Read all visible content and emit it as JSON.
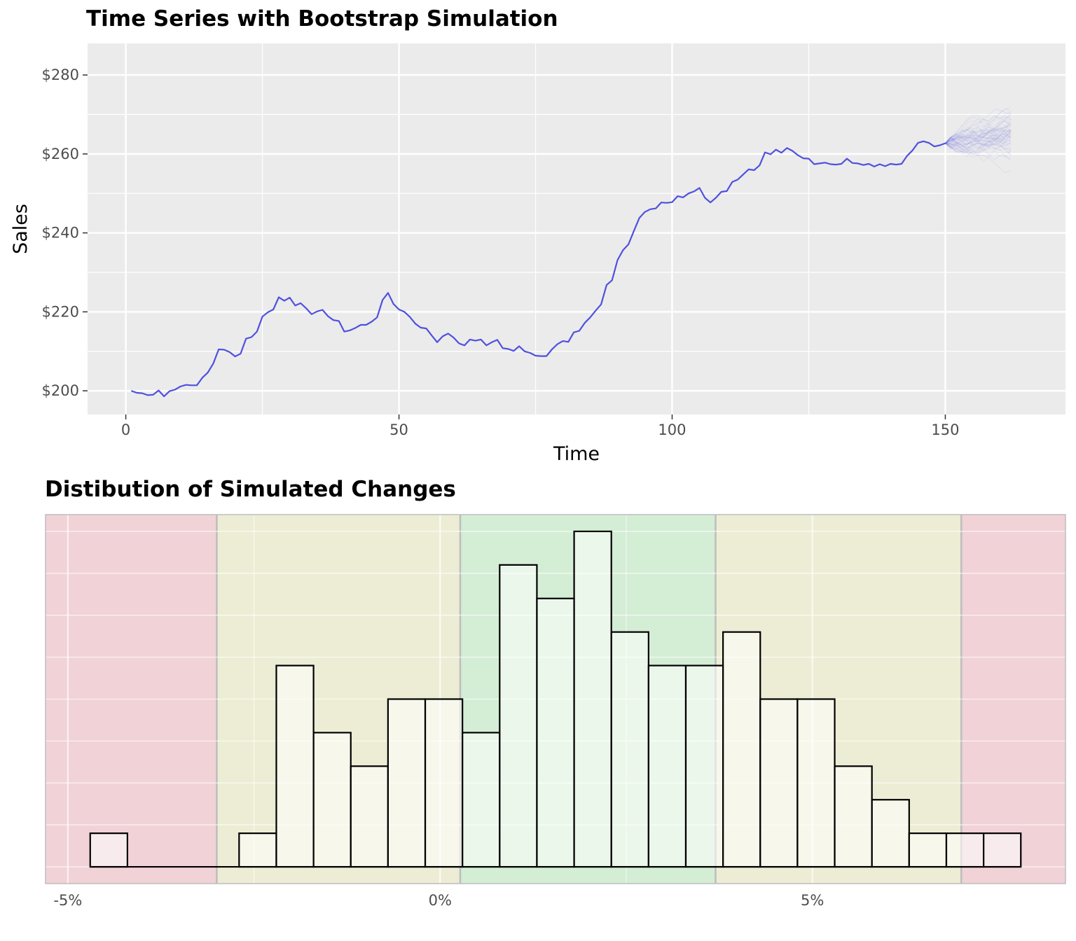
{
  "chart_data": [
    {
      "type": "line",
      "title": "Time Series with Bootstrap Simulation",
      "xlabel": "Time",
      "ylabel": "Sales",
      "xlim": [
        -7,
        172
      ],
      "ylim": [
        194,
        288
      ],
      "x_ticks": [
        0,
        50,
        100,
        150
      ],
      "x_tick_labels": [
        "0",
        "50",
        "100",
        "150"
      ],
      "y_ticks": [
        200,
        220,
        240,
        260,
        280
      ],
      "y_tick_labels": [
        "$200",
        "$220",
        "$240",
        "$260",
        "$280"
      ],
      "grid": true,
      "colors": {
        "line": "#5050e0",
        "panel": "#ebebeb",
        "grid": "#ffffff"
      },
      "series": [
        {
          "x": [
            1,
            2,
            3,
            4,
            5,
            6,
            7,
            8,
            9,
            10,
            11,
            12,
            13,
            14,
            15,
            16,
            17,
            18,
            19,
            20,
            21,
            22,
            23,
            24,
            25,
            26,
            27,
            28,
            29,
            30,
            31,
            32,
            33,
            34,
            35,
            36,
            37,
            38,
            39,
            40,
            41,
            42,
            43,
            44,
            45,
            46,
            47,
            48,
            49,
            50,
            51,
            52,
            53,
            54,
            55,
            56,
            57,
            58,
            59,
            60,
            61,
            62,
            63,
            64,
            65,
            66,
            67,
            68,
            69,
            70,
            71,
            72,
            73,
            74,
            75,
            76,
            77,
            78,
            79,
            80,
            81,
            82,
            83,
            84,
            85,
            86,
            87,
            88,
            89,
            90,
            91,
            92,
            93,
            94,
            95,
            96,
            97,
            98,
            99,
            100,
            101,
            102,
            103,
            104,
            105,
            106,
            107,
            108,
            109,
            110,
            111,
            112,
            113,
            114,
            115,
            116,
            117,
            118,
            119,
            120,
            121,
            122,
            123,
            124,
            125,
            126,
            127,
            128,
            129,
            130,
            131,
            132,
            133,
            134,
            135,
            136,
            137,
            138,
            139,
            140,
            141,
            142,
            143,
            144,
            145,
            146,
            147,
            148,
            149,
            150
          ],
          "values": [
            200.0,
            199.5,
            199.4,
            198.9,
            199.0,
            200.1,
            198.6,
            199.9,
            200.3,
            201.1,
            201.5,
            201.4,
            201.4,
            203.3,
            204.6,
            206.9,
            210.5,
            210.4,
            209.8,
            208.7,
            209.4,
            213.2,
            213.6,
            215.0,
            218.8,
            219.9,
            220.6,
            223.7,
            222.8,
            223.6,
            221.6,
            222.2,
            220.9,
            219.4,
            220.1,
            220.5,
            218.9,
            217.9,
            217.7,
            215.0,
            215.3,
            215.9,
            216.7,
            216.7,
            217.5,
            218.6,
            223.0,
            224.8,
            222.0,
            220.6,
            220.0,
            218.7,
            217.0,
            216.0,
            215.8,
            214.0,
            212.3,
            213.8,
            214.5,
            213.5,
            212.0,
            211.5,
            213.0,
            212.7,
            213.0,
            211.5,
            212.3,
            212.9,
            210.8,
            210.6,
            210.1,
            211.3,
            210.0,
            209.6,
            208.9,
            208.8,
            208.8,
            210.5,
            211.8,
            212.6,
            212.4,
            214.8,
            215.2,
            217.2,
            218.6,
            220.3,
            221.9,
            226.8,
            228.0,
            233.1,
            235.6,
            237.1,
            240.5,
            243.8,
            245.3,
            246.0,
            246.2,
            247.7,
            247.6,
            247.8,
            249.3,
            249.0,
            250.0,
            250.5,
            251.4,
            248.9,
            247.7,
            248.9,
            250.4,
            250.6,
            252.9,
            253.5,
            254.8,
            256.1,
            255.9,
            257.1,
            260.4,
            259.9,
            261.1,
            260.3,
            261.5,
            260.8,
            259.7,
            258.9,
            258.8,
            257.4,
            257.6,
            257.8,
            257.4,
            257.3,
            257.5,
            258.8,
            257.7,
            257.6,
            257.2,
            257.5,
            256.8,
            257.4,
            256.9,
            257.5,
            257.3,
            257.5,
            259.5,
            260.9,
            262.8,
            263.2,
            262.8,
            261.9,
            262.2,
            262.7
          ]
        }
      ]
    },
    {
      "type": "bar",
      "title": "Distibution of Simulated Changes",
      "xlabel": "",
      "ylabel": "",
      "xlim": [
        -5.3,
        8.4
      ],
      "ylim": [
        -0.5,
        10.5
      ],
      "x_ticks": [
        -5,
        0,
        5
      ],
      "x_tick_labels": [
        "-5%",
        "0%",
        "5%"
      ],
      "y_ticks": [
        0,
        1.25,
        2.5,
        3.75,
        5,
        6.25,
        7.5,
        8.75,
        10
      ],
      "grid": true,
      "bin_width": 0.5,
      "bin_start": -4.7,
      "counts": [
        1,
        0,
        0,
        0,
        1,
        6,
        4,
        3,
        5,
        5,
        4,
        9,
        8,
        10,
        7,
        6,
        6,
        7,
        5,
        5,
        3,
        2,
        1,
        1,
        1
      ],
      "zones": [
        {
          "from": -5.3,
          "to": -3.0,
          "color": "#f0d2d7"
        },
        {
          "from": -3.0,
          "to": 0.27,
          "color": "#ededd5"
        },
        {
          "from": 0.27,
          "to": 3.7,
          "color": "#d4edd5"
        },
        {
          "from": 3.7,
          "to": 7.0,
          "color": "#ededd5"
        },
        {
          "from": 7.0,
          "to": 8.4,
          "color": "#f0d2d7"
        }
      ],
      "colors": {
        "bar_fill": "#ffffff",
        "bar_fill_opacity": 0.55,
        "bar_stroke": "#000000",
        "zone_border": "#bdbdbd",
        "grid": "#ffffff"
      }
    }
  ]
}
